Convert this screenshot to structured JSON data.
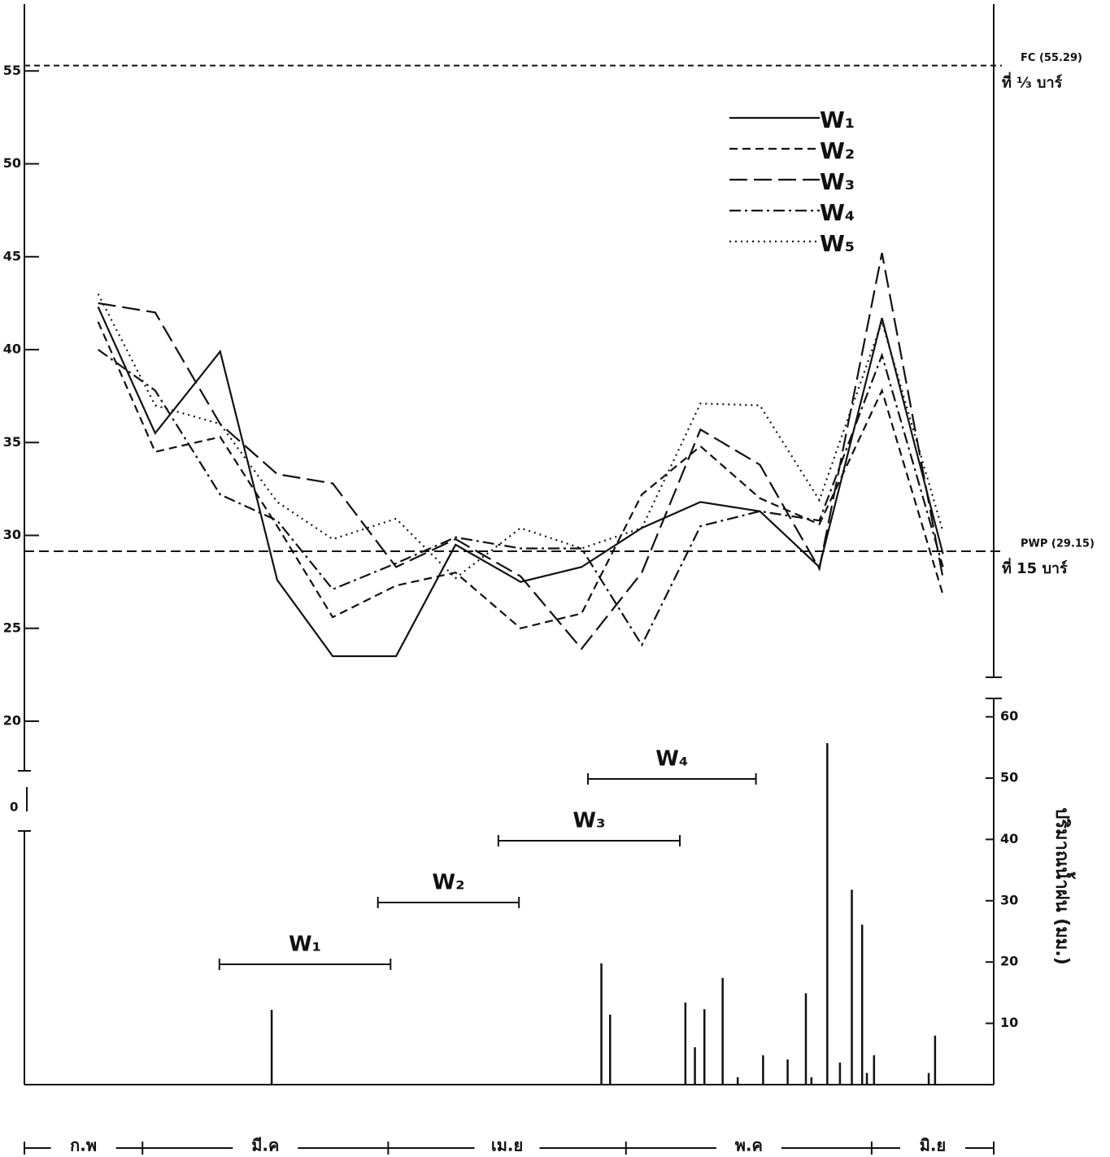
{
  "chart_data": {
    "type": "line",
    "x": [
      -5.6,
      1.6,
      9.8,
      17,
      24,
      32,
      39.5,
      47.7,
      55.4,
      63,
      70.4,
      77.9,
      85.4,
      93.3,
      101
    ],
    "xlim": [
      -14.9,
      107.4
    ],
    "month_edges": [
      0,
      31,
      61,
      92
    ],
    "months": [
      "ก.พ",
      "มี.ค",
      "เม.ย",
      "พ.ค",
      "มิ.ย"
    ],
    "ylim": [
      17.2,
      58.6
    ],
    "yticks": [
      20,
      25,
      30,
      35,
      40,
      45,
      50,
      55
    ],
    "axis_break_label": "0",
    "series": [
      {
        "name": "W₁",
        "dash": "solid",
        "color": "#111111",
        "values": [
          42.3,
          35.5,
          39.9,
          27.6,
          23.5,
          23.5,
          29.5,
          27.5,
          28.3,
          30.4,
          31.8,
          31.3,
          28.3,
          41.7,
          29
        ]
      },
      {
        "name": "W₂",
        "dash": "dashed",
        "color": "#111111",
        "values": [
          41.5,
          34.5,
          35.3,
          30.5,
          25.6,
          27.3,
          28,
          25,
          25.8,
          32.2,
          34.8,
          32,
          30.6,
          37.8,
          26.8
        ]
      },
      {
        "name": "W₃",
        "dash": "longdash",
        "color": "#111111",
        "values": [
          42.5,
          42,
          36,
          33.3,
          32.8,
          28.3,
          29.8,
          27.8,
          23.9,
          28,
          35.7,
          33.8,
          28.2,
          45.2,
          27.7
        ]
      },
      {
        "name": "W₄",
        "dash": "dashdot",
        "color": "#111111",
        "values": [
          40,
          37.8,
          32.2,
          30.8,
          27.1,
          28.5,
          29.9,
          29.3,
          29.3,
          24.1,
          30.5,
          31.3,
          30.8,
          39.7,
          28.3
        ]
      },
      {
        "name": "W₅",
        "dash": "dotted",
        "color": "#111111",
        "values": [
          43,
          37,
          36,
          31.8,
          29.8,
          30.9,
          27.7,
          30.4,
          29.3,
          30.4,
          37.1,
          37,
          31.9,
          41.5,
          30.2
        ]
      }
    ],
    "reference_lines": [
      {
        "value": 55.29,
        "label": "FC (55.29)",
        "sublabel": "ที่ ⅓ บาร์"
      },
      {
        "value": 29.15,
        "label": "PWP (29.15)",
        "sublabel": "ที่ 15 บาร์"
      }
    ],
    "rainfall": {
      "y2_label": "ปริมาณน้ำฝน (มม.)",
      "y2lim": [
        0,
        63
      ],
      "y2ticks": [
        10,
        20,
        30,
        40,
        50,
        60
      ],
      "x": [
        16.3,
        57.9,
        59,
        68.5,
        69.7,
        70.9,
        73.2,
        75.1,
        78.3,
        81.4,
        83.7,
        84.4,
        86.4,
        88,
        89.5,
        90.8,
        91.4,
        92.3,
        99.2,
        100
      ],
      "values": [
        12.2,
        19.8,
        11.4,
        13.4,
        6.1,
        12.3,
        17.4,
        1.2,
        4.8,
        4.1,
        14.9,
        1.2,
        55.7,
        3.6,
        31.8,
        26.1,
        1.9,
        4.8,
        1.9,
        8
      ]
    },
    "periods": [
      {
        "label": "W₁",
        "start": 9.7,
        "end": 31.3
      },
      {
        "label": "W₂",
        "start": 29.7,
        "end": 47.5
      },
      {
        "label": "W₃",
        "start": 44.9,
        "end": 67.8
      },
      {
        "label": "W₄",
        "start": 56.2,
        "end": 77.4
      }
    ]
  }
}
